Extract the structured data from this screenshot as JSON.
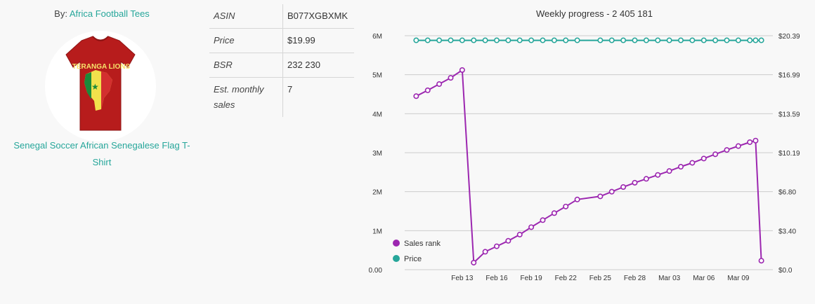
{
  "brand": {
    "prefix": "By:",
    "name": "Africa Football Tees"
  },
  "product": {
    "title": "Senegal Soccer African Senegalese Flag T-Shirt",
    "shirt_text": "TERANGA LIONS",
    "shirt_color": "#b71c1c"
  },
  "info": {
    "rows": [
      {
        "label": "ASIN",
        "value": "B077XGBXMK"
      },
      {
        "label": "Price",
        "value": "$19.99"
      },
      {
        "label": "BSR",
        "value": "232 230"
      },
      {
        "label": "Est. monthly sales",
        "value": "7"
      }
    ]
  },
  "colors": {
    "accent": "#26a69a",
    "sales_rank": "#9c27b0",
    "price": "#26a69a"
  },
  "chart_data": {
    "type": "line",
    "title": "Weekly progress - 2 405 181",
    "x_tick_labels": [
      "Feb 13",
      "Feb 16",
      "Feb 19",
      "Feb 22",
      "Feb 25",
      "Feb 28",
      "Mar 03",
      "Mar 06",
      "Mar 09"
    ],
    "y_left_ticks": [
      "0.00",
      "1M",
      "2M",
      "3M",
      "4M",
      "5M",
      "6M"
    ],
    "y_right_ticks": [
      "$0.0",
      "$3.40",
      "$6.80",
      "$10.19",
      "$13.59",
      "$16.99",
      "$20.39"
    ],
    "ylim_left": [
      0,
      6000000
    ],
    "ylim_right": [
      0,
      20.39
    ],
    "legend": [
      "Sales rank",
      "Price"
    ],
    "legend_position": "bottom-left",
    "grid": true,
    "series": [
      {
        "name": "Sales rank",
        "axis": "left",
        "x": [
          9.0,
          10.0,
          11.0,
          12.0,
          13.0,
          14.0,
          15.0,
          16.0,
          17.0,
          18.0,
          19.0,
          20.0,
          21.0,
          22.0,
          23.0,
          25.0,
          26.0,
          27.0,
          28.0,
          29.0,
          30.0,
          31.0,
          32.0,
          33.0,
          34.0,
          35.0,
          36.0,
          37.0,
          38.0,
          38.5,
          39.0
        ],
        "values": [
          4450000,
          4600000,
          4760000,
          4920000,
          5120000,
          180000,
          460000,
          600000,
          740000,
          900000,
          1090000,
          1270000,
          1450000,
          1620000,
          1800000,
          1880000,
          2000000,
          2120000,
          2230000,
          2330000,
          2430000,
          2530000,
          2640000,
          2740000,
          2850000,
          2960000,
          3070000,
          3170000,
          3270000,
          3310000,
          230000
        ]
      },
      {
        "name": "Price",
        "axis": "right",
        "x": [
          9.0,
          10.0,
          11.0,
          12.0,
          13.0,
          14.0,
          15.0,
          16.0,
          17.0,
          18.0,
          19.0,
          20.0,
          21.0,
          22.0,
          23.0,
          25.0,
          26.0,
          27.0,
          28.0,
          29.0,
          30.0,
          31.0,
          32.0,
          33.0,
          34.0,
          35.0,
          36.0,
          37.0,
          38.0,
          38.5,
          39.0
        ],
        "values": [
          19.99,
          19.99,
          19.99,
          19.99,
          19.99,
          19.99,
          19.99,
          19.99,
          19.99,
          19.99,
          19.99,
          19.99,
          19.99,
          19.99,
          19.99,
          19.99,
          19.99,
          19.99,
          19.99,
          19.99,
          19.99,
          19.99,
          19.99,
          19.99,
          19.99,
          19.99,
          19.99,
          19.99,
          19.99,
          19.99,
          19.99
        ]
      }
    ]
  }
}
